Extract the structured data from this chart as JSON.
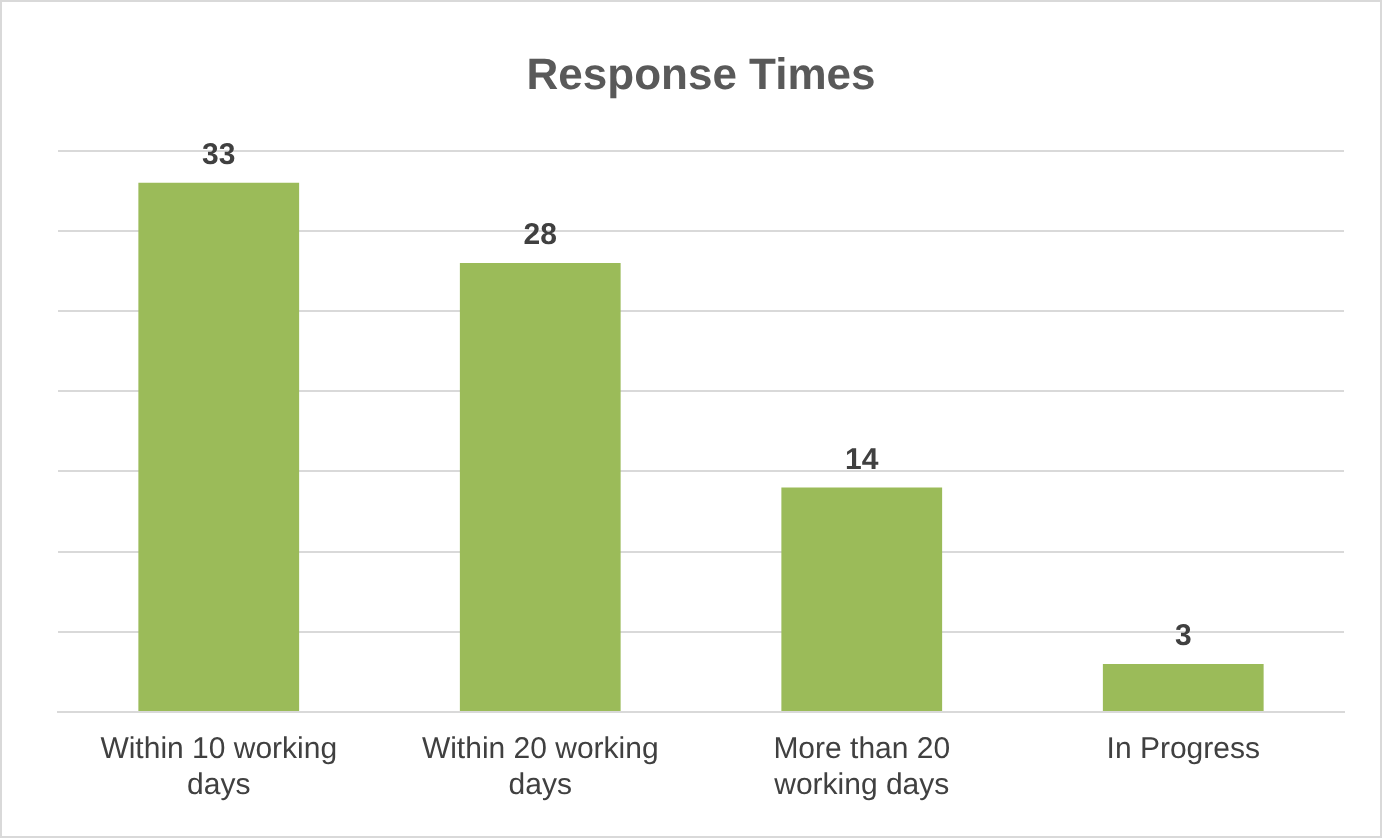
{
  "chart_data": {
    "type": "bar",
    "title": "Response Times",
    "categories": [
      "Within 10 working days",
      "Within 20 working days",
      "More than 20 working days",
      "In Progress"
    ],
    "values": [
      33,
      28,
      14,
      3
    ],
    "color": "#9bbb59",
    "ylim": [
      0,
      35
    ],
    "yticks": [
      0,
      5,
      10,
      15,
      20,
      25,
      30,
      35
    ],
    "grid": "y",
    "tick_labels": "x",
    "data_labels": true
  }
}
